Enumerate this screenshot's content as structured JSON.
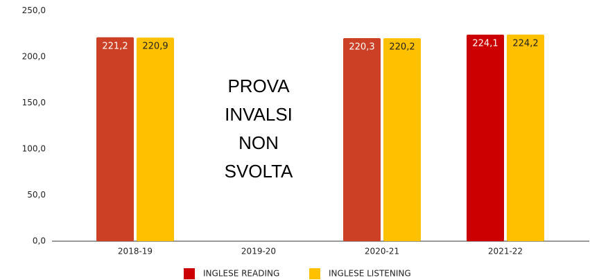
{
  "chart_data": {
    "type": "bar",
    "categories": [
      "2018-19",
      "2019-20",
      "2020-21",
      "2021-22"
    ],
    "series": [
      {
        "name": "INGLESE READING",
        "color": "#cc0000",
        "colors": [
          "#cc4125",
          null,
          "#cc4125",
          "#cc0000"
        ],
        "values": [
          221.2,
          null,
          220.3,
          224.1
        ],
        "value_labels": [
          "221,2",
          null,
          "220,3",
          "224,1"
        ]
      },
      {
        "name": "INGLESE LISTENING",
        "color": "#ffc000",
        "values": [
          220.9,
          null,
          220.2,
          224.2
        ],
        "value_labels": [
          "220,9",
          null,
          "220,2",
          "224,2"
        ]
      }
    ],
    "ylim": [
      0,
      250
    ],
    "yticks": [
      {
        "value": 0,
        "label": "0,0"
      },
      {
        "value": 50,
        "label": "50,0"
      },
      {
        "value": 100,
        "label": "100,0"
      },
      {
        "value": 150,
        "label": "150,0"
      },
      {
        "value": 200,
        "label": "200,0"
      },
      {
        "value": 250,
        "label": "250,0"
      }
    ],
    "grid": false,
    "legend": "bottom",
    "annotation": {
      "category": 1,
      "lines": [
        "PROVA",
        "INVALSI",
        "NON",
        "SVOLTA"
      ]
    }
  }
}
